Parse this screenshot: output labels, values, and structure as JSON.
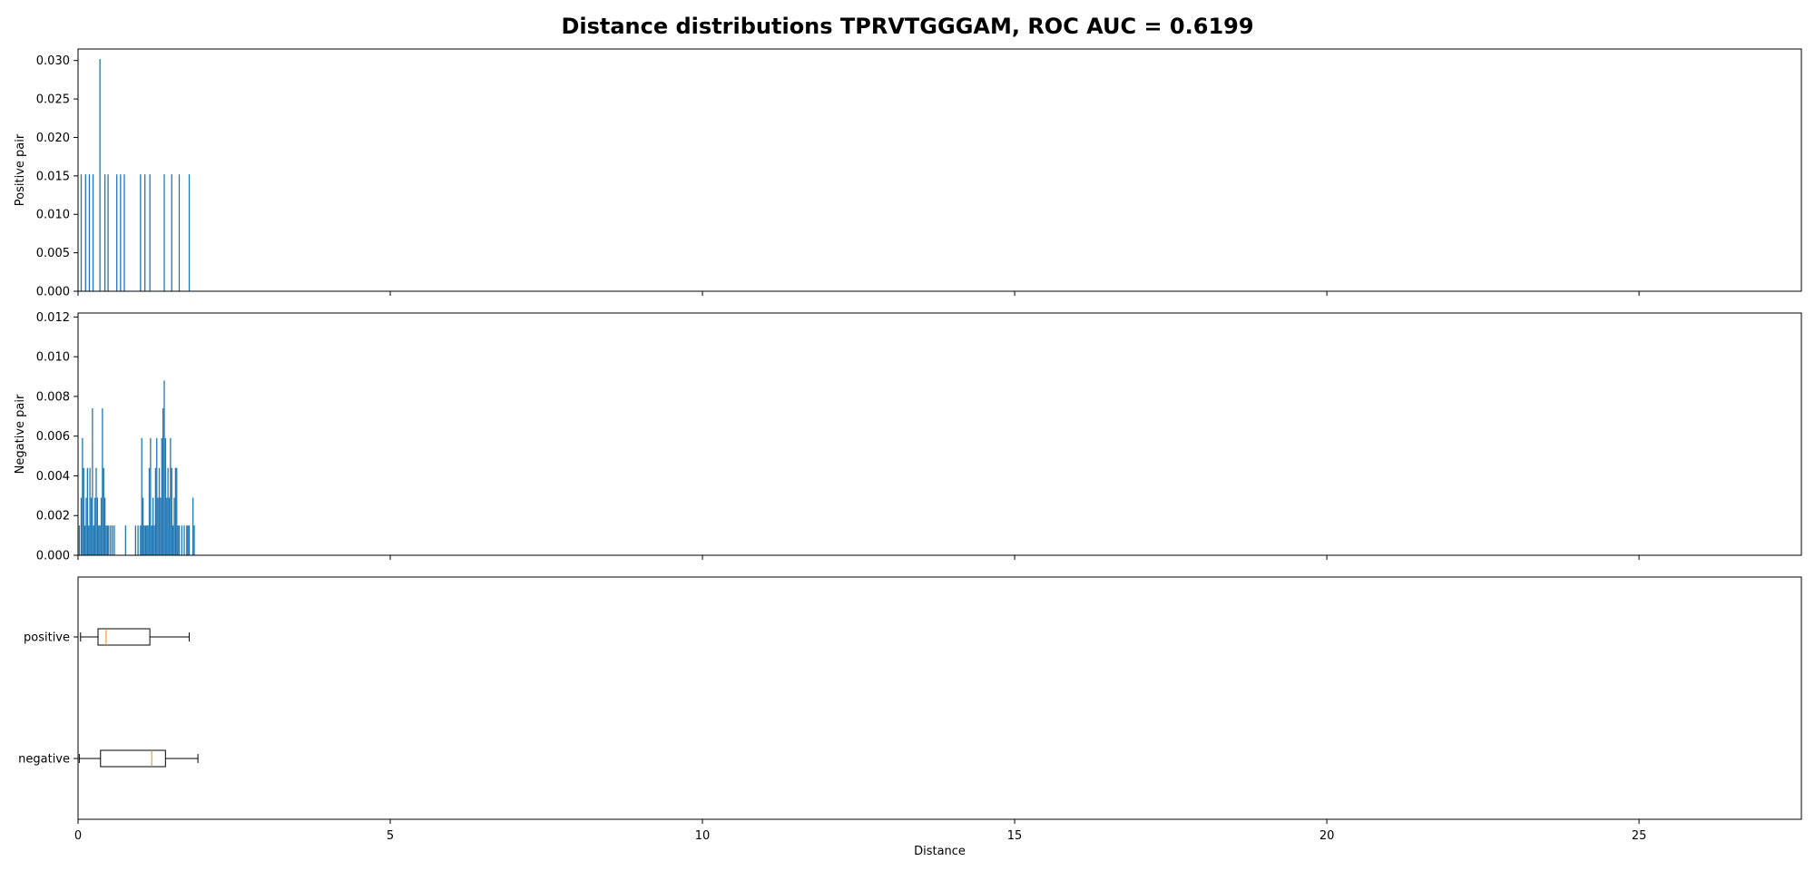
{
  "figure": {
    "title": "Distance distributions TPRVTGGGAM, ROC AUC = 0.6199"
  },
  "chart_data": [
    {
      "type": "bar",
      "panel": "positive-histogram",
      "ylabel": "Positive pair",
      "xlim": [
        0,
        27.6
      ],
      "ylim": [
        0,
        0.0315
      ],
      "yticks": [
        "0.000",
        "0.005",
        "0.010",
        "0.015",
        "0.020",
        "0.025",
        "0.030"
      ],
      "color": "#1f77b4",
      "x": [
        0.05,
        0.12,
        0.18,
        0.24,
        0.35,
        0.43,
        0.48,
        0.62,
        0.68,
        0.74,
        1.0,
        1.07,
        1.15,
        1.38,
        1.5,
        1.62,
        1.78
      ],
      "values": [
        0.0152,
        0.0152,
        0.0152,
        0.0152,
        0.0302,
        0.0152,
        0.0152,
        0.0152,
        0.0152,
        0.0152,
        0.0152,
        0.0152,
        0.0152,
        0.0152,
        0.0152,
        0.0152,
        0.0152
      ]
    },
    {
      "type": "bar",
      "panel": "negative-histogram",
      "ylabel": "Negative pair",
      "xlim": [
        0,
        27.6
      ],
      "ylim": [
        0,
        0.0122
      ],
      "yticks": [
        "0.000",
        "0.002",
        "0.004",
        "0.006",
        "0.008",
        "0.010",
        "0.012"
      ],
      "color": "#1f77b4",
      "x": [
        0.02,
        0.05,
        0.07,
        0.09,
        0.11,
        0.13,
        0.15,
        0.17,
        0.19,
        0.21,
        0.23,
        0.25,
        0.27,
        0.29,
        0.31,
        0.33,
        0.35,
        0.37,
        0.39,
        0.41,
        0.43,
        0.45,
        0.47,
        0.49,
        0.52,
        0.55,
        0.58,
        0.76,
        0.92,
        0.96,
        1.0,
        1.02,
        1.04,
        1.06,
        1.08,
        1.1,
        1.12,
        1.14,
        1.16,
        1.18,
        1.2,
        1.22,
        1.24,
        1.26,
        1.28,
        1.3,
        1.32,
        1.34,
        1.36,
        1.38,
        1.4,
        1.42,
        1.44,
        1.46,
        1.48,
        1.5,
        1.52,
        1.54,
        1.56,
        1.58,
        1.6,
        1.62,
        1.66,
        1.7,
        1.74,
        1.76,
        1.78,
        1.84,
        1.86
      ],
      "values": [
        0.0015,
        0.0029,
        0.0059,
        0.0044,
        0.0015,
        0.0029,
        0.0044,
        0.0015,
        0.0044,
        0.0029,
        0.0074,
        0.0015,
        0.0029,
        0.0044,
        0.0029,
        0.0015,
        0.0015,
        0.0029,
        0.0074,
        0.0044,
        0.0029,
        0.0015,
        0.0015,
        0.0015,
        0.0015,
        0.0015,
        0.0015,
        0.0015,
        0.0015,
        0.0015,
        0.0015,
        0.0059,
        0.0029,
        0.0015,
        0.0015,
        0.0015,
        0.0015,
        0.0044,
        0.0059,
        0.0015,
        0.0029,
        0.0015,
        0.0044,
        0.0059,
        0.0029,
        0.0044,
        0.0029,
        0.0059,
        0.0074,
        0.0088,
        0.0059,
        0.0029,
        0.0044,
        0.0029,
        0.0059,
        0.0044,
        0.0015,
        0.0029,
        0.0044,
        0.0044,
        0.0015,
        0.0015,
        0.0015,
        0.0015,
        0.0015,
        0.0015,
        0.0015,
        0.0029,
        0.0015
      ]
    },
    {
      "type": "box",
      "panel": "boxplot",
      "xlabel": "Distance",
      "xlim": [
        0,
        27.6
      ],
      "xticks": [
        "0",
        "5",
        "10",
        "15",
        "20",
        "25"
      ],
      "categories": [
        "positive",
        "negative"
      ],
      "box_color": "#000000",
      "median_color": "#ff7f0e",
      "boxes": [
        {
          "label": "positive",
          "min": 0.04,
          "q1": 0.32,
          "median": 0.45,
          "q3": 1.15,
          "max": 1.78
        },
        {
          "label": "negative",
          "min": 0.02,
          "q1": 0.36,
          "median": 1.18,
          "q3": 1.4,
          "max": 1.92
        }
      ]
    }
  ]
}
